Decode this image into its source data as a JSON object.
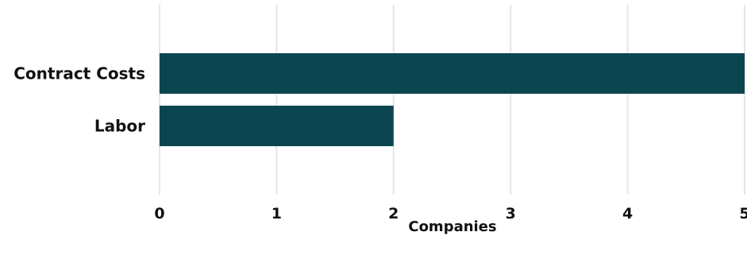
{
  "chart_data": {
    "type": "bar",
    "orientation": "horizontal",
    "categories": [
      "Contract Costs",
      "Labor"
    ],
    "values": [
      5,
      2
    ],
    "xlabel": "Companies",
    "ylabel": "",
    "xlim": [
      0,
      5
    ],
    "x_ticks": [
      "0",
      "1",
      "2",
      "3",
      "4",
      "5"
    ],
    "grid": "vertical",
    "bar_color": "#0b4650"
  }
}
